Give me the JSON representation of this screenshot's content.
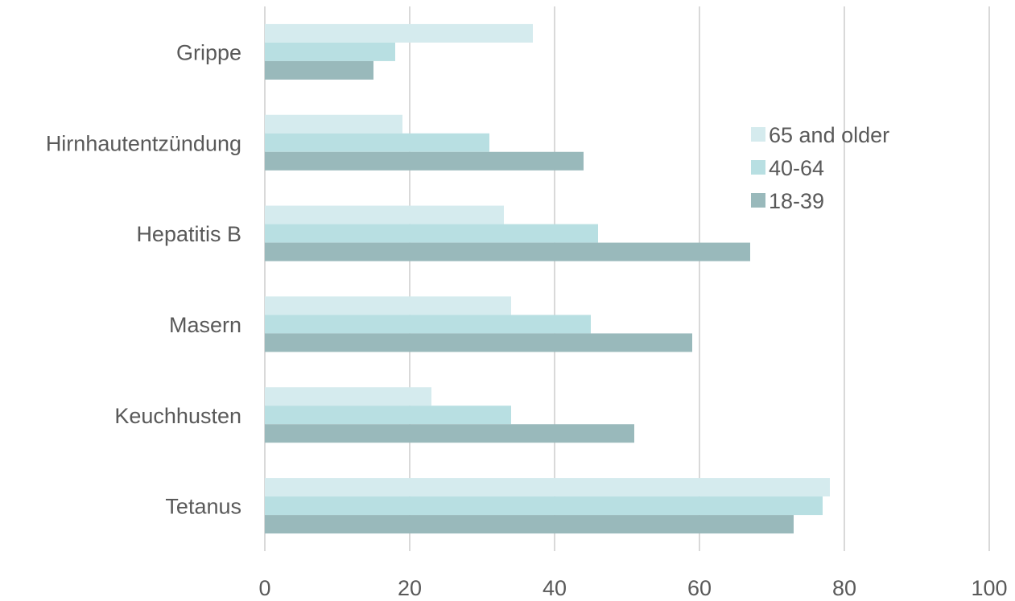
{
  "chart_data": {
    "type": "bar",
    "orientation": "horizontal",
    "categories": [
      "Grippe",
      "Hirnhautentzündung",
      "Hepatitis B",
      "Masern",
      "Keuchhusten",
      "Tetanus"
    ],
    "series": [
      {
        "name": "65 and older",
        "color": "#d5ebee",
        "values": [
          37,
          19,
          33,
          34,
          23,
          78
        ]
      },
      {
        "name": "40-64",
        "color": "#b8dfe2",
        "values": [
          18,
          31,
          46,
          45,
          34,
          77
        ]
      },
      {
        "name": "18-39",
        "color": "#99b9bb",
        "values": [
          15,
          44,
          67,
          59,
          51,
          73
        ]
      }
    ],
    "xlim": [
      0,
      100
    ],
    "xticks": [
      0,
      20,
      40,
      60,
      80,
      100
    ],
    "grid": true,
    "legend_position": "right"
  }
}
